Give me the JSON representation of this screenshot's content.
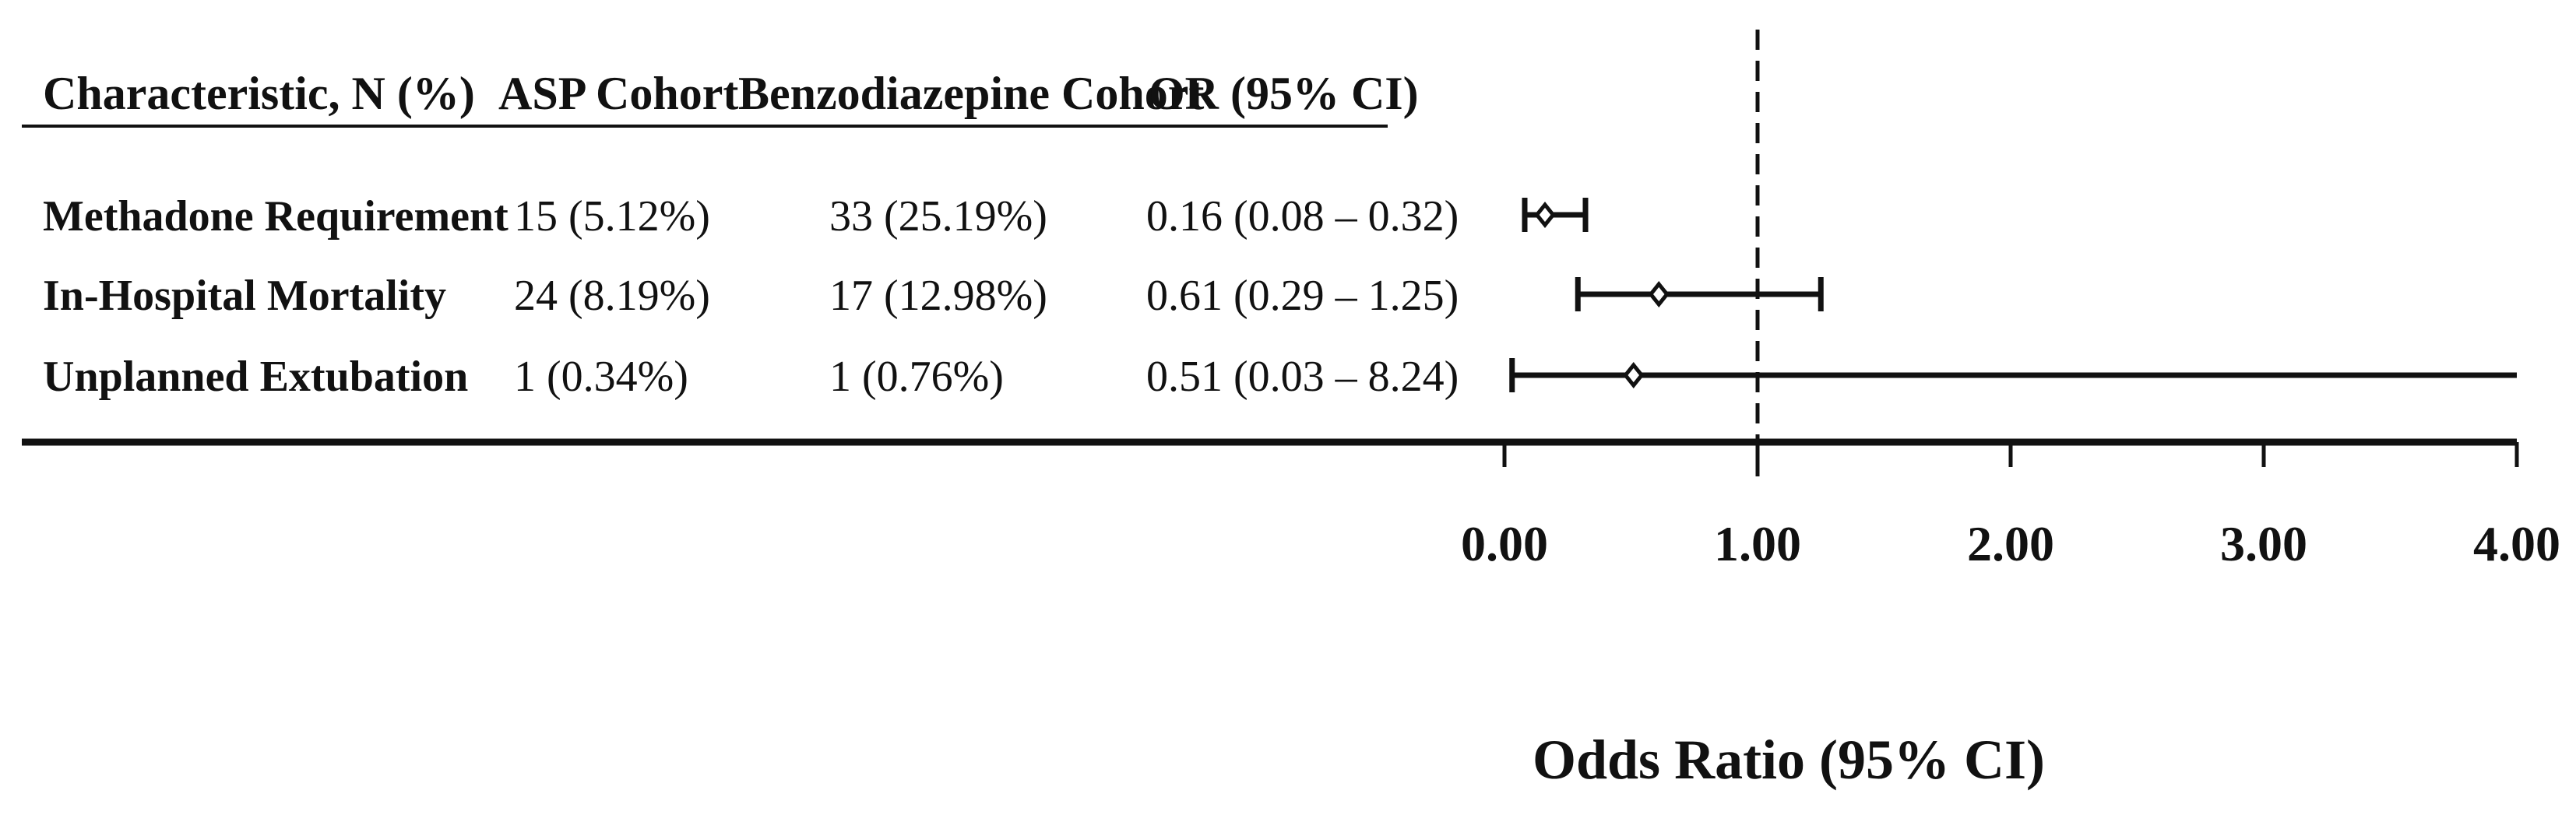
{
  "chart_data": {
    "type": "forest",
    "columns": [
      "Characteristic, N (%)",
      "ASP Cohort",
      "Benzodiazepine Cohort",
      "OR (95% CI)"
    ],
    "rows": [
      {
        "label": "Methadone Requirement",
        "asp": "15 (5.12%)",
        "benzo": "33 (25.19%)",
        "or_text": "0.16 (0.08 – 0.32)",
        "or": 0.16,
        "lo": 0.08,
        "hi": 0.32
      },
      {
        "label": "In-Hospital Mortality",
        "asp": "24 (8.19%)",
        "benzo": "17 (12.98%)",
        "or_text": "0.61 (0.29 – 1.25)",
        "or": 0.61,
        "lo": 0.29,
        "hi": 1.25
      },
      {
        "label": "Unplanned Extubation",
        "asp": "1 (0.34%)",
        "benzo": "1 (0.76%)",
        "or_text": "0.51 (0.03 – 8.24)",
        "or": 0.51,
        "lo": 0.03,
        "hi": 8.24
      }
    ],
    "xlabel": "Odds Ratio (95% CI)",
    "xlim": [
      0,
      4
    ],
    "xticks": [
      "0.00",
      "1.00",
      "2.00",
      "3.00",
      "4.00"
    ],
    "reference_line": 1.0,
    "ci_truncated_at_axis_max": true
  },
  "colors": {
    "ink": "#111111",
    "background": "#ffffff"
  }
}
